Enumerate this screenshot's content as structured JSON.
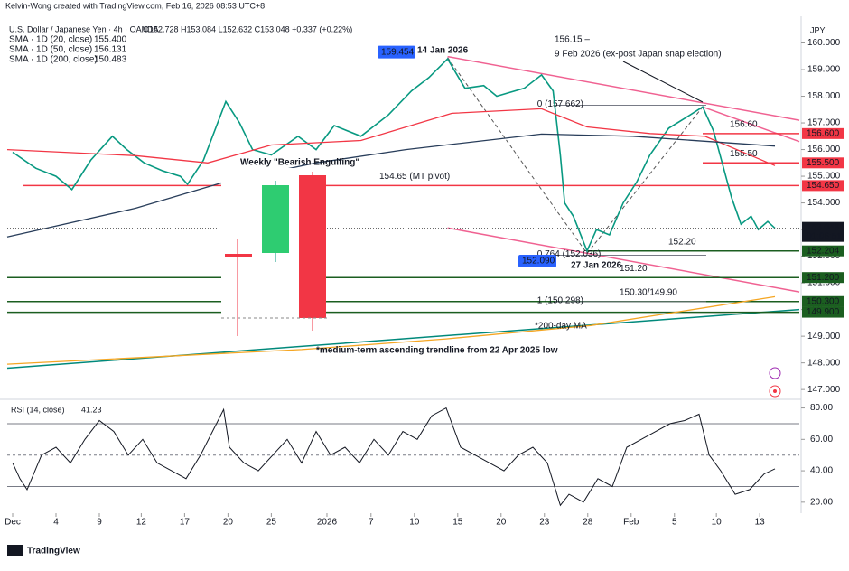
{
  "header": "Kelvin-Wong created with TradingView.com, Feb 16, 2026 08:53 UTC+8",
  "logo": "TradingView",
  "chart_data": [
    {
      "type": "line",
      "title": "U.S. Dollar / Japanese Yen · 4h · OANDA",
      "ohlc": "O152.728  H153.084  L152.632  C153.048  +0.337 (+0.22%)",
      "currency": "JPY",
      "xlim": [
        -0.375,
        54.44
      ],
      "ylim": [
        146.7,
        161
      ],
      "yticks": [
        {
          "value": 147,
          "label": "147.000"
        },
        {
          "value": 148,
          "label": "148.000"
        },
        {
          "value": 149,
          "label": "149.000"
        },
        {
          "value": 150,
          "label": "150.000"
        },
        {
          "value": 151,
          "label": "151.000"
        },
        {
          "value": 152,
          "label": "152.000"
        },
        {
          "value": 153,
          "label": "153.000"
        },
        {
          "value": 154,
          "label": "154.000"
        },
        {
          "value": 155,
          "label": "155.000"
        },
        {
          "value": 156,
          "label": "156.000"
        },
        {
          "value": 157,
          "label": "157.000"
        },
        {
          "value": 158,
          "label": "158.000"
        },
        {
          "value": 159,
          "label": "159.000"
        },
        {
          "value": 160,
          "label": "160.000"
        }
      ],
      "series": [
        {
          "color": "#089981",
          "x": [
            0,
            1.6,
            3,
            4.1,
            5.4,
            6.9,
            7.9,
            9.1,
            10.4,
            11.6,
            12.1,
            13.2,
            14.75,
            15.7,
            16.6,
            17.9,
            19.75,
            21,
            22.25,
            24.1,
            26,
            27.6,
            28.8,
            30.1,
            31.3,
            32.6,
            33.5,
            35.4,
            36.6,
            37.4,
            37.9,
            38.2,
            38.8,
            39.75,
            40.4,
            41.3,
            42.25,
            43.2,
            44.1,
            45.4,
            46.6,
            47.75,
            48.5,
            49.1,
            49.75,
            50.4,
            51.1,
            51.6,
            52.25,
            52.75
          ],
          "values": [
            155.9,
            155.3,
            155,
            154.5,
            155.6,
            156.5,
            156,
            155.5,
            155.2,
            155,
            154.7,
            155.6,
            157.8,
            157,
            156,
            155.8,
            156.5,
            156,
            156.9,
            156.5,
            157.3,
            158.2,
            158.7,
            159.4,
            158.3,
            158.4,
            158,
            158.3,
            158.8,
            158.2,
            155.8,
            154,
            153.5,
            152.2,
            153,
            152.8,
            154,
            154.8,
            155.8,
            156.8,
            157.2,
            157.6,
            156.7,
            155.5,
            154.2,
            153.2,
            153.5,
            153,
            153.3,
            153.05
          ]
        },
        {
          "name": "SMA · 1D (20, close)",
          "color": "#f23645",
          "last": {
            "value": 155.4,
            "label": "155.400"
          },
          "x": [
            -0.375,
            8.5,
            13.5,
            17.9,
            24.1,
            30.4,
            36.6,
            39.75,
            44.1,
            47.9,
            52.75
          ],
          "values": [
            156,
            155.77,
            155.5,
            156.17,
            156.34,
            157.36,
            157.53,
            156.85,
            156.6,
            156.5,
            155.4
          ]
        },
        {
          "name": "SMA · 1D (50, close)",
          "color": "#283d5a",
          "last": {
            "value": 156.131,
            "label": "156.131"
          },
          "x": [
            -0.375,
            8.5,
            14.75,
            21,
            27.2,
            36.6,
            42.9,
            52.75
          ],
          "values": [
            152.72,
            153.8,
            154.8,
            155.5,
            156,
            156.58,
            156.5,
            156.131
          ]
        },
        {
          "name": "SMA · 1D (200, close)",
          "color": "#f5a623",
          "last": {
            "value": 150.483,
            "label": "150.483"
          },
          "x": [
            -0.375,
            20,
            30,
            40,
            52.75
          ],
          "values": [
            147.95,
            148.5,
            148.9,
            149.4,
            150.483
          ]
        }
      ],
      "levels": [
        {
          "value": 156.6,
          "label": "156.60",
          "tag": "156.600",
          "color": "#f23645"
        },
        {
          "value": 155.5,
          "label": "155.50",
          "tag": "155.500",
          "color": "#f23645"
        },
        {
          "value": 154.65,
          "label": "154.65 (MT pivot)",
          "tag": "154.650",
          "color": "#f23645"
        },
        {
          "value": 152.2,
          "label": "152.20",
          "tag": "152.204",
          "color": "#1b5e20"
        },
        {
          "value": 151.2,
          "label": "151.20",
          "tag": "151.200",
          "color": "#1b5e20"
        },
        {
          "value": 150.3,
          "label": "150.30/149.90",
          "tag": "150.300",
          "color": "#1b5e20"
        },
        {
          "value": 149.9,
          "tag": "149.900",
          "color": "#1b5e20"
        }
      ],
      "current": {
        "value": 153.048,
        "label": "153.048",
        "countdown": "01:06:51"
      },
      "fib": [
        {
          "value": 157.662,
          "label": "0 (157.662)"
        },
        {
          "value": 152.036,
          "label": "0.764 (152.036)"
        },
        {
          "value": 150.298,
          "label": "1 (150.298)"
        }
      ],
      "high": {
        "value": 159.454,
        "label": "159.454"
      },
      "low": {
        "value": 152.09,
        "label": "152.090"
      },
      "lines": [
        {
          "color": "#00897b",
          "x": [
            -0.375,
            54.44
          ],
          "y": [
            147.8,
            150
          ]
        },
        {
          "color": "#f06292",
          "x": [
            30.1,
            54.44
          ],
          "y": [
            159.49,
            157.1
          ]
        },
        {
          "color": "#f06292",
          "x": [
            30.1,
            54.44
          ],
          "y": [
            153.06,
            150.66
          ]
        },
        {
          "color": "#f06292",
          "x": [
            47.75,
            54.44
          ],
          "y": [
            157.6,
            156.3
          ]
        },
        {
          "color": "#555",
          "dash": true,
          "x": [
            30.1,
            39.75
          ],
          "y": [
            159.45,
            152.1
          ]
        },
        {
          "color": "#555",
          "dash": true,
          "x": [
            39.75,
            47.75
          ],
          "y": [
            152.1,
            157.6
          ]
        }
      ],
      "annotations": [
        "14 Jan 2026",
        "156.15 –",
        "9 Feb 2026 (ex-post Japan snap election)",
        "27 Jan 2026",
        "Weekly \"Bearish Engulfing\"",
        "*200-day MA",
        "*medium-term ascending trendline from 22 Apr 2025 low"
      ]
    },
    {
      "type": "line",
      "title": "RSI (14, close)",
      "last": 41.23,
      "xlim": [
        -0.375,
        54.44
      ],
      "ylim": [
        13,
        85.5
      ],
      "yticks": [
        {
          "value": 20,
          "label": "20.00"
        },
        {
          "value": 40,
          "label": "40.00"
        },
        {
          "value": 60,
          "label": "60.00"
        },
        {
          "value": 80,
          "label": "80.00"
        }
      ],
      "bands": [
        70,
        50,
        30
      ],
      "xticks": [
        {
          "value": 0,
          "label": "Dec"
        },
        {
          "value": 3,
          "label": "4"
        },
        {
          "value": 6,
          "label": "9"
        },
        {
          "value": 8.9,
          "label": "12"
        },
        {
          "value": 11.9,
          "label": "17"
        },
        {
          "value": 14.9,
          "label": "20"
        },
        {
          "value": 17.9,
          "label": "25"
        },
        {
          "value": 21.75,
          "label": "2026"
        },
        {
          "value": 24.8,
          "label": "7"
        },
        {
          "value": 27.8,
          "label": "10"
        },
        {
          "value": 30.8,
          "label": "15"
        },
        {
          "value": 33.8,
          "label": "20"
        },
        {
          "value": 36.8,
          "label": "23"
        },
        {
          "value": 39.8,
          "label": "28"
        },
        {
          "value": 42.8,
          "label": "Feb"
        },
        {
          "value": 45.8,
          "label": "5"
        },
        {
          "value": 48.7,
          "label": "10"
        },
        {
          "value": 51.7,
          "label": "13"
        }
      ],
      "series": [
        {
          "color": "#131722",
          "x": [
            0,
            0.5,
            1,
            2,
            3,
            4,
            5,
            6,
            7,
            8,
            9,
            10,
            11,
            12,
            13,
            14.6,
            15,
            16,
            17,
            18,
            19,
            20,
            21,
            22,
            23,
            24,
            25,
            26,
            27,
            28,
            29,
            30,
            31,
            32,
            33,
            34,
            35,
            36,
            37,
            37.9,
            38.5,
            39.5,
            40.5,
            41.5,
            42.5,
            43.5,
            44.5,
            45.5,
            46.5,
            47.5,
            48.2,
            49,
            50,
            51,
            52,
            52.75
          ],
          "values": [
            45,
            35,
            28,
            50,
            55,
            45,
            60,
            72,
            65,
            50,
            60,
            45,
            40,
            35,
            50,
            79,
            55,
            45,
            40,
            50,
            60,
            45,
            65,
            50,
            55,
            45,
            60,
            50,
            65,
            60,
            75,
            80,
            55,
            50,
            45,
            40,
            50,
            55,
            45,
            18,
            25,
            20,
            35,
            30,
            55,
            60,
            65,
            70,
            72,
            76,
            50,
            40,
            25,
            28,
            38,
            41.23
          ]
        }
      ]
    }
  ]
}
